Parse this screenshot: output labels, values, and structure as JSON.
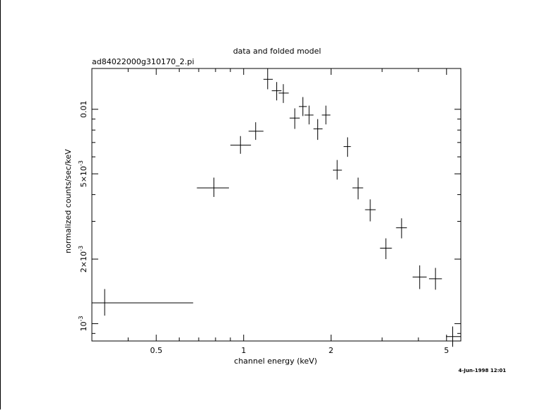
{
  "chart_data": {
    "type": "scatter",
    "title": "data and folded model",
    "subtitle": "ad84022000g310170_2.pi",
    "xlabel": "channel energy (keV)",
    "ylabel": "normalized counts/sec/keV",
    "xscale": "log",
    "yscale": "log",
    "xlim": [
      0.3,
      5.6
    ],
    "ylim": [
      0.00083,
      0.0155
    ],
    "grid": false,
    "x_tick_labels": [
      "0.5",
      "1",
      "2",
      "5"
    ],
    "x_tick_values": [
      0.5,
      1,
      2,
      5
    ],
    "y_tick_labels": [
      {
        "base": "10",
        "exp": "-3",
        "value": 0.001
      },
      {
        "base": "2×10",
        "exp": "-3",
        "value": 0.002
      },
      {
        "base": "5×10",
        "exp": "-3",
        "value": 0.005
      },
      {
        "base": "0.01",
        "exp": "",
        "value": 0.01
      }
    ],
    "series": [
      {
        "points": [
          {
            "x": 0.332,
            "xlo": 0.3,
            "xhi": 0.67,
            "y": 0.00125,
            "ylo": 0.00109,
            "yhi": 0.00145
          },
          {
            "x": 0.79,
            "xlo": 0.69,
            "xhi": 0.89,
            "y": 0.0043,
            "ylo": 0.0039,
            "yhi": 0.0048
          },
          {
            "x": 0.975,
            "xlo": 0.9,
            "xhi": 1.06,
            "y": 0.0068,
            "ylo": 0.0062,
            "yhi": 0.0075
          },
          {
            "x": 1.1,
            "xlo": 1.04,
            "xhi": 1.17,
            "y": 0.0079,
            "ylo": 0.0072,
            "yhi": 0.0087
          },
          {
            "x": 1.21,
            "xlo": 1.17,
            "xhi": 1.26,
            "y": 0.0138,
            "ylo": 0.0124,
            "yhi": 0.0155
          },
          {
            "x": 1.3,
            "xlo": 1.25,
            "xhi": 1.35,
            "y": 0.0122,
            "ylo": 0.011,
            "yhi": 0.0134
          },
          {
            "x": 1.37,
            "xlo": 1.32,
            "xhi": 1.43,
            "y": 0.0119,
            "ylo": 0.0107,
            "yhi": 0.0131
          },
          {
            "x": 1.5,
            "xlo": 1.44,
            "xhi": 1.56,
            "y": 0.0091,
            "ylo": 0.0081,
            "yhi": 0.0101
          },
          {
            "x": 1.6,
            "xlo": 1.55,
            "xhi": 1.65,
            "y": 0.0103,
            "ylo": 0.0093,
            "yhi": 0.0114
          },
          {
            "x": 1.68,
            "xlo": 1.62,
            "xhi": 1.74,
            "y": 0.0094,
            "ylo": 0.0085,
            "yhi": 0.0104
          },
          {
            "x": 1.8,
            "xlo": 1.74,
            "xhi": 1.87,
            "y": 0.0081,
            "ylo": 0.0072,
            "yhi": 0.009
          },
          {
            "x": 1.92,
            "xlo": 1.86,
            "xhi": 1.99,
            "y": 0.0094,
            "ylo": 0.0085,
            "yhi": 0.0104
          },
          {
            "x": 2.1,
            "xlo": 2.03,
            "xhi": 2.18,
            "y": 0.0052,
            "ylo": 0.0047,
            "yhi": 0.0058
          },
          {
            "x": 2.28,
            "xlo": 2.21,
            "xhi": 2.34,
            "y": 0.0067,
            "ylo": 0.006,
            "yhi": 0.0074
          },
          {
            "x": 2.48,
            "xlo": 2.37,
            "xhi": 2.58,
            "y": 0.0043,
            "ylo": 0.0038,
            "yhi": 0.0048
          },
          {
            "x": 2.73,
            "xlo": 2.62,
            "xhi": 2.85,
            "y": 0.0034,
            "ylo": 0.003,
            "yhi": 0.0038
          },
          {
            "x": 3.09,
            "xlo": 2.95,
            "xhi": 3.24,
            "y": 0.00225,
            "ylo": 0.002,
            "yhi": 0.0025
          },
          {
            "x": 3.5,
            "xlo": 3.35,
            "xhi": 3.65,
            "y": 0.0028,
            "ylo": 0.0025,
            "yhi": 0.0031
          },
          {
            "x": 4.04,
            "xlo": 3.82,
            "xhi": 4.27,
            "y": 0.00165,
            "ylo": 0.00145,
            "yhi": 0.00187
          },
          {
            "x": 4.58,
            "xlo": 4.35,
            "xhi": 4.82,
            "y": 0.00162,
            "ylo": 0.00144,
            "yhi": 0.00182
          },
          {
            "x": 5.25,
            "xlo": 4.98,
            "xhi": 5.6,
            "y": 0.00087,
            "ylo": 0.00078,
            "yhi": 0.00097
          }
        ]
      }
    ]
  },
  "footer": {
    "timestamp": "4-Jun-1998 12:01"
  }
}
